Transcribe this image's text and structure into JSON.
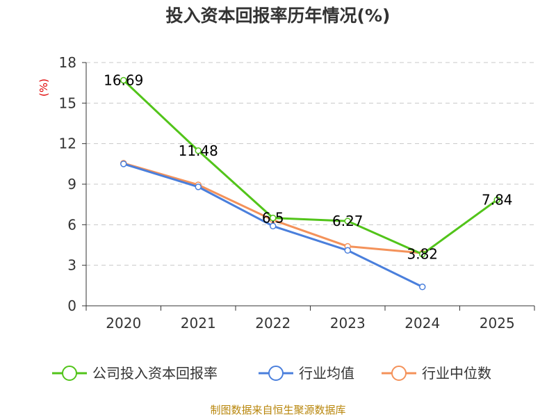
{
  "chart_data": {
    "type": "line",
    "title": "投入资本回报率历年情况(%)",
    "ylabel": "(%)",
    "xlabel": "",
    "ylim": [
      0,
      18
    ],
    "yticks": [
      0,
      3,
      6,
      9,
      12,
      15,
      18
    ],
    "categories": [
      "2020",
      "2021",
      "2022",
      "2023",
      "2024",
      "2025"
    ],
    "grid": true,
    "legend_position": "bottom",
    "series": [
      {
        "name": "公司投入资本回报率",
        "color": "#52c41a",
        "values": [
          16.69,
          11.48,
          6.5,
          6.27,
          3.82,
          7.84
        ],
        "labels": [
          "16.69",
          "11.48",
          "6.5",
          "6.27",
          "3.82",
          "7.84"
        ]
      },
      {
        "name": "行业均值",
        "color": "#4a7fdc",
        "values": [
          10.5,
          8.8,
          5.9,
          4.1,
          1.4,
          null
        ]
      },
      {
        "name": "行业中位数",
        "color": "#f4925a",
        "values": [
          10.55,
          8.95,
          6.35,
          4.4,
          3.9,
          null
        ]
      }
    ],
    "source": "制图数据来自恒生聚源数据库"
  }
}
